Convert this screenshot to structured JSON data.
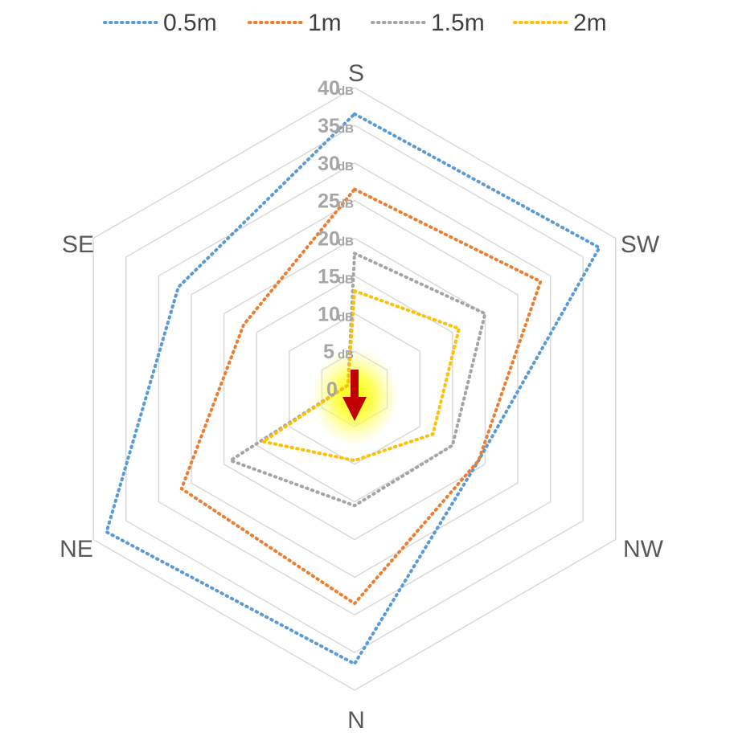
{
  "chart_data": {
    "type": "radar",
    "title": "",
    "categories": [
      "S",
      "SW",
      "NW",
      "N",
      "NE",
      "SE"
    ],
    "unit": "dB",
    "rlim": [
      0,
      40
    ],
    "ticks": [
      {
        "value": 0,
        "label": "0",
        "unit": ""
      },
      {
        "value": 5,
        "label": "5",
        "unit": "dB"
      },
      {
        "value": 10,
        "label": "10",
        "unit": "dB"
      },
      {
        "value": 15,
        "label": "15",
        "unit": "dB"
      },
      {
        "value": 20,
        "label": "20",
        "unit": "dB"
      },
      {
        "value": 25,
        "label": "25",
        "unit": "dB"
      },
      {
        "value": 30,
        "label": "30",
        "unit": "dB"
      },
      {
        "value": 35,
        "label": "35",
        "unit": "dB"
      },
      {
        "value": 40,
        "label": "40",
        "unit": "dB"
      }
    ],
    "grid": true,
    "legend_position": "top",
    "series": [
      {
        "name": "0.5m",
        "color": "#5b9bd5",
        "values": [
          36.5,
          37.5,
          19.0,
          36.5,
          38.0,
          27.0
        ]
      },
      {
        "name": "1m",
        "color": "#ed7d31",
        "values": [
          26.5,
          28.5,
          19.0,
          28.5,
          26.5,
          17.0
        ]
      },
      {
        "name": "1.5m",
        "color": "#a5a5a5",
        "values": [
          18.0,
          20.0,
          15.0,
          15.5,
          19.0,
          1.0
        ]
      },
      {
        "name": "2m",
        "color": "#ffc000",
        "values": [
          13.0,
          16.0,
          12.0,
          9.5,
          14.0,
          1.0
        ]
      }
    ],
    "annotation": {
      "type": "arrow",
      "direction": "N",
      "color": "#c00000",
      "highlight_color": "#ffff00"
    }
  }
}
